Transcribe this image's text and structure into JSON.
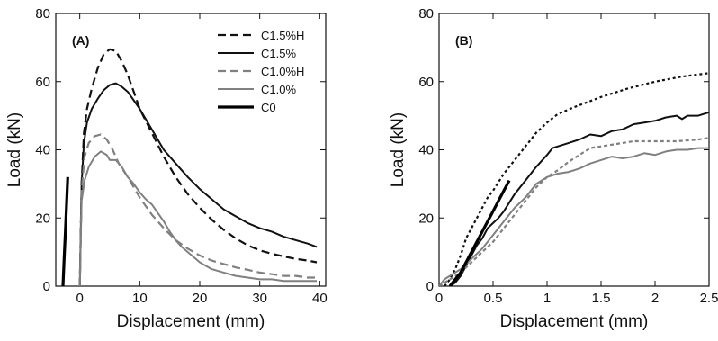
{
  "chart_data": [
    {
      "type": "line",
      "panel_label": "(A)",
      "xlabel": "Displacement (mm)",
      "ylabel": "Load (kN)",
      "xlim": [
        -4,
        41
      ],
      "ylim": [
        0,
        80
      ],
      "xticks": [
        0,
        10,
        20,
        30,
        40
      ],
      "yticks": [
        0,
        20,
        40,
        60,
        80
      ],
      "grid": false,
      "legend_position": "top-right",
      "series": [
        {
          "name": "C1.5%H",
          "color": "#111111",
          "dash": "9,5",
          "width": 2.2,
          "x": [
            0,
            0.3,
            0.7,
            1.2,
            2,
            3,
            4,
            5,
            6,
            7,
            8,
            9,
            10,
            12,
            14,
            16,
            18,
            20,
            22,
            24,
            26,
            28,
            30,
            32,
            34,
            36,
            38,
            39.5
          ],
          "y": [
            0,
            30,
            45,
            52,
            58,
            64,
            68,
            69.5,
            69,
            66,
            62,
            57,
            52,
            45,
            38,
            32,
            27,
            23,
            19.5,
            16.5,
            14,
            12,
            10.5,
            9.5,
            8.7,
            8,
            7.5,
            7
          ]
        },
        {
          "name": "C1.5%",
          "color": "#111111",
          "dash": "",
          "width": 2,
          "x": [
            0,
            0.3,
            0.7,
            1.2,
            2,
            3,
            4,
            5,
            6,
            7,
            8,
            10,
            12,
            14,
            16,
            18,
            20,
            22,
            24,
            26,
            28,
            30,
            32,
            34,
            36,
            38,
            39.5
          ],
          "y": [
            0,
            30,
            42,
            48,
            52,
            55,
            57.5,
            59,
            59.5,
            58.5,
            57,
            52,
            46,
            40,
            36,
            32,
            28.5,
            25.5,
            22.5,
            20.5,
            18.5,
            17,
            16,
            14.5,
            13.5,
            12.5,
            11.5
          ]
        },
        {
          "name": "C1.0%H",
          "color": "#808080",
          "dash": "9,5",
          "width": 2.2,
          "x": [
            0,
            0.3,
            0.8,
            1.5,
            2.5,
            3.5,
            4.5,
            5.5,
            6.5,
            8,
            10,
            12,
            14,
            16,
            18,
            20,
            22,
            24,
            26,
            28,
            30,
            32,
            34,
            36,
            38,
            39.5
          ],
          "y": [
            0,
            28,
            38,
            42,
            44,
            44.5,
            43,
            40,
            36,
            32,
            26,
            21,
            17,
            13.5,
            11,
            9,
            7.5,
            6.5,
            5.5,
            4.8,
            4,
            3.5,
            3,
            3,
            2.5,
            2.5
          ]
        },
        {
          "name": "C1.0%",
          "color": "#808080",
          "dash": "",
          "width": 2,
          "x": [
            0,
            0.3,
            0.8,
            1.5,
            2.5,
            3.5,
            4.5,
            5,
            6,
            7,
            8,
            9,
            10,
            11,
            12,
            13,
            14,
            15,
            16,
            17,
            18,
            20,
            22,
            24,
            26,
            28,
            30,
            32,
            34,
            36,
            38,
            39.5
          ],
          "y": [
            0,
            25,
            31,
            35,
            38,
            39.5,
            38.5,
            37,
            37,
            35,
            32,
            30,
            27.5,
            25.5,
            24,
            21.5,
            19,
            16,
            13.5,
            11.5,
            10,
            7,
            5,
            4,
            3,
            2.5,
            2,
            2,
            1.5,
            1.5,
            1.5,
            1.5
          ]
        },
        {
          "name": "C0",
          "color": "#000000",
          "dash": "",
          "width": 3.2,
          "x": [
            -2.8,
            -2.6,
            -2.4,
            -2.2,
            -2.0
          ],
          "y": [
            0,
            8,
            16,
            24,
            32
          ]
        }
      ]
    },
    {
      "type": "line",
      "panel_label": "(B)",
      "xlabel": "Displacement (mm)",
      "ylabel": "Load (kN)",
      "xlim": [
        0,
        2.5
      ],
      "ylim": [
        0,
        80
      ],
      "xticks": [
        0,
        0.5,
        1,
        1.5,
        2,
        2.5
      ],
      "xtick_labels": [
        "0",
        "0.5",
        "1",
        "1.5",
        "2",
        "2.5"
      ],
      "yticks": [
        0,
        20,
        40,
        60,
        80
      ],
      "grid": false,
      "series": [
        {
          "color": "#111111",
          "dash": "3,3",
          "width": 2.2,
          "x": [
            0.05,
            0.1,
            0.15,
            0.2,
            0.25,
            0.3,
            0.35,
            0.4,
            0.45,
            0.5,
            0.6,
            0.7,
            0.8,
            0.9,
            1.0,
            1.1,
            1.25,
            1.5,
            1.75,
            2.0,
            2.25,
            2.5
          ],
          "y": [
            0,
            2,
            5,
            9,
            14,
            17,
            20,
            23,
            26,
            28,
            33,
            37,
            41,
            45,
            48,
            50.5,
            52.5,
            55.5,
            58,
            60,
            61.5,
            62.5
          ]
        },
        {
          "color": "#111111",
          "dash": "",
          "width": 2,
          "x": [
            0.1,
            0.15,
            0.2,
            0.25,
            0.3,
            0.35,
            0.4,
            0.45,
            0.5,
            0.55,
            0.6,
            0.7,
            0.8,
            0.9,
            1.0,
            1.05,
            1.2,
            1.3,
            1.4,
            1.5,
            1.6,
            1.7,
            1.8,
            1.9,
            2.0,
            2.1,
            2.2,
            2.25,
            2.3,
            2.4,
            2.5
          ],
          "y": [
            0,
            1,
            3,
            6,
            9,
            12,
            14,
            17,
            18.5,
            20,
            22,
            27,
            31,
            35,
            38.5,
            40.5,
            42,
            43,
            44.5,
            44,
            45.5,
            46,
            47.5,
            48,
            48.5,
            49.5,
            50,
            49,
            50,
            50,
            51
          ]
        },
        {
          "color": "#808080",
          "dash": "4,3",
          "width": 2.2,
          "x": [
            0,
            0.05,
            0.1,
            0.2,
            0.3,
            0.4,
            0.5,
            0.6,
            0.7,
            0.8,
            0.9,
            1.0,
            1.1,
            1.2,
            1.3,
            1.4,
            1.5,
            1.6,
            1.7,
            1.8,
            1.9,
            2.0,
            2.2,
            2.4,
            2.5
          ],
          "y": [
            0,
            1,
            2,
            4,
            7,
            10,
            13,
            17,
            21,
            25,
            29,
            32,
            34,
            36.5,
            38.5,
            40.5,
            41,
            41.5,
            42,
            42.5,
            42.5,
            42.5,
            42.5,
            43,
            43.5
          ]
        },
        {
          "color": "#808080",
          "dash": "",
          "width": 2,
          "x": [
            0,
            0.05,
            0.1,
            0.2,
            0.3,
            0.4,
            0.5,
            0.6,
            0.7,
            0.8,
            0.9,
            1.0,
            1.1,
            1.2,
            1.3,
            1.4,
            1.5,
            1.6,
            1.7,
            1.8,
            1.9,
            2.0,
            2.1,
            2.2,
            2.3,
            2.4,
            2.5
          ],
          "y": [
            0,
            2,
            3,
            5,
            8,
            11,
            15,
            19,
            23,
            26,
            30,
            32,
            33,
            33.5,
            34.5,
            36,
            37,
            38,
            37.5,
            38,
            39,
            38.5,
            39.5,
            40,
            40,
            40.5,
            40.5
          ]
        },
        {
          "color": "#000000",
          "dash": "",
          "width": 3.2,
          "x": [
            0.1,
            0.15,
            0.2,
            0.25,
            0.3,
            0.35,
            0.4,
            0.45,
            0.5,
            0.55,
            0.6,
            0.65
          ],
          "y": [
            0,
            2,
            4,
            7,
            10,
            13,
            16,
            19,
            22,
            25,
            28,
            31
          ]
        }
      ]
    }
  ]
}
